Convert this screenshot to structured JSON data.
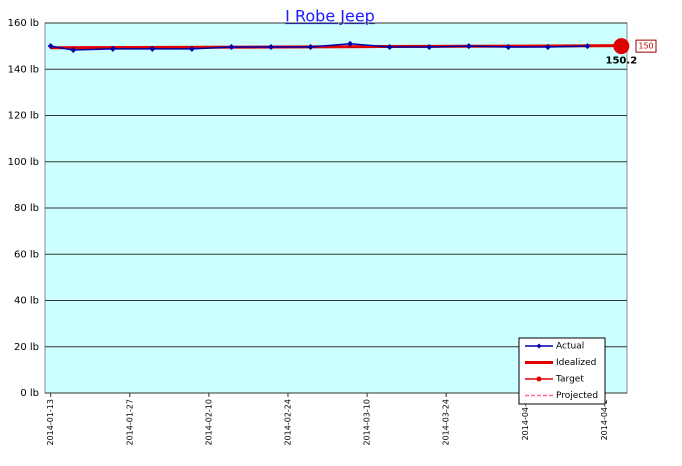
{
  "chart_data": {
    "type": "line",
    "title": "I Robe Jeep",
    "xlim": [
      "2014-01-12",
      "2014-04-25"
    ],
    "xticks": [
      {
        "value": "2014-01-13",
        "label": "2014-01-13"
      },
      {
        "value": "2014-01-27",
        "label": "2014-01-27"
      },
      {
        "value": "2014-02-10",
        "label": "2014-02-10"
      },
      {
        "value": "2014-02-24",
        "label": "2014-02-24"
      },
      {
        "value": "2014-03-10",
        "label": "2014-03-10"
      },
      {
        "value": "2014-03-24",
        "label": "2014-03-24"
      },
      {
        "value": "2014-04-07",
        "label": "2014-04-0"
      },
      {
        "value": "2014-04-21",
        "label": "2014-04-2"
      }
    ],
    "ylim": [
      0,
      160
    ],
    "yticks": [
      {
        "value": 0,
        "label": "0 lb"
      },
      {
        "value": 20,
        "label": "20 lb"
      },
      {
        "value": 40,
        "label": "40 lb"
      },
      {
        "value": 60,
        "label": "60 lb"
      },
      {
        "value": 80,
        "label": "80 lb"
      },
      {
        "value": 100,
        "label": "100 lb"
      },
      {
        "value": 120,
        "label": "120 lb"
      },
      {
        "value": 140,
        "label": "140 lb"
      },
      {
        "value": 160,
        "label": "160 lb"
      }
    ],
    "grid": true,
    "legend": "lower-right",
    "series": [
      {
        "name": "Actual",
        "color": "#0000aa",
        "marker": "diamond",
        "x": [
          "2014-01-13",
          "2014-01-17",
          "2014-01-24",
          "2014-01-31",
          "2014-02-07",
          "2014-02-14",
          "2014-02-21",
          "2014-02-28",
          "2014-03-07",
          "2014-03-14",
          "2014-03-21",
          "2014-03-28",
          "2014-04-04",
          "2014-04-11",
          "2014-04-18"
        ],
        "values": [
          150,
          148.3,
          148.8,
          148.8,
          148.8,
          149.6,
          149.6,
          149.6,
          151,
          149.6,
          149.6,
          150,
          149.6,
          149.6,
          150
        ]
      },
      {
        "name": "Idealized",
        "color": "#e00000",
        "marker": "none",
        "thick": true,
        "x": [
          "2014-01-13",
          "2014-02-10",
          "2014-03-10",
          "2014-04-07",
          "2014-04-24"
        ],
        "values": [
          149.3,
          149.5,
          149.8,
          150,
          150.2
        ]
      },
      {
        "name": "Target",
        "color": "#e00000",
        "marker": "circle",
        "x": [
          "2014-04-24"
        ],
        "values": [
          150
        ]
      },
      {
        "name": "Projected",
        "color": "#ff66aa",
        "marker": "none",
        "dashed": true,
        "x": [],
        "values": []
      }
    ]
  }
}
